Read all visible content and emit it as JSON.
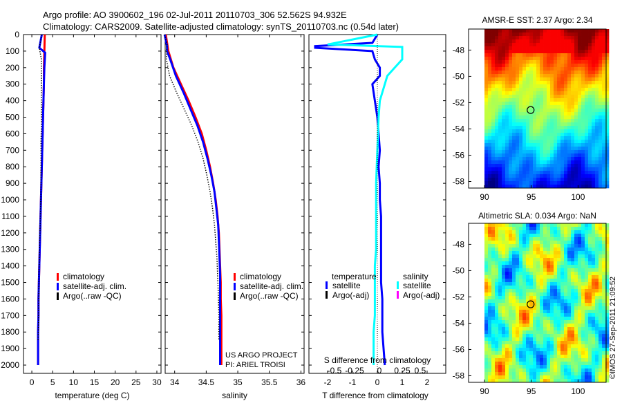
{
  "header": {
    "line1": "Argo profile: AO 3900602_196 02-Jul-2011 20110703_306 52.562S 94.932E",
    "line2": "Climatology: CARS2009. Satellite-adjusted climatology: synTS_20110703.nc (0.54d later)"
  },
  "credits": {
    "project": "US ARGO PROJECT",
    "pi": "PI: ARIEL TROISI"
  },
  "stamp": "©IMOS 27-Sep-2011 21:09:52",
  "colors": {
    "climatology": "#ff0000",
    "satellite": "#0000ff",
    "argo": "#000000",
    "satellite_s": "#00ffff",
    "argo_s": "#ff00ff"
  },
  "chart_data": [
    {
      "type": "line",
      "id": "temperature",
      "xlabel": "temperature (deg C)",
      "ylabel": "",
      "xlim": [
        -2,
        31
      ],
      "ylim": [
        2050,
        0
      ],
      "xticks": [
        0,
        5,
        10,
        15,
        20,
        25,
        30
      ],
      "yticks": [
        0,
        100,
        200,
        300,
        400,
        500,
        600,
        700,
        800,
        900,
        1000,
        1100,
        1200,
        1300,
        1400,
        1500,
        1600,
        1700,
        1800,
        1900,
        2000
      ],
      "legend": [
        "climatology",
        "satellite-adj. clim.",
        "Argo(..raw -QC)"
      ],
      "series": [
        {
          "name": "climatology",
          "color": "#ff0000",
          "x": [
            3.1,
            3.0,
            2.9,
            2.9,
            2.8,
            2.7,
            2.6,
            2.5,
            2.4,
            2.3,
            2.2,
            2.1,
            2.0,
            1.9,
            1.8,
            1.7,
            1.6,
            1.6,
            1.5,
            1.5,
            1.5
          ],
          "y": [
            0,
            100,
            200,
            300,
            400,
            500,
            600,
            700,
            800,
            900,
            1000,
            1100,
            1200,
            1300,
            1400,
            1500,
            1600,
            1700,
            1800,
            1900,
            2000
          ]
        },
        {
          "name": "satellite-adj. clim.",
          "color": "#0000ff",
          "x": [
            2.4,
            1.8,
            3.2,
            3.0,
            2.9,
            2.8,
            2.7,
            2.6,
            2.5,
            2.4,
            2.3,
            2.2,
            2.1,
            2.0,
            1.9,
            1.8,
            1.7,
            1.6,
            1.6,
            1.5,
            1.5,
            1.5
          ],
          "y": [
            0,
            80,
            110,
            200,
            300,
            400,
            500,
            600,
            700,
            800,
            900,
            1000,
            1100,
            1200,
            1300,
            1400,
            1500,
            1600,
            1700,
            1800,
            1900,
            2000
          ]
        },
        {
          "name": "Argo(..raw -QC)",
          "color": "#000000",
          "x": [
            2.4,
            1.8,
            2.3,
            2.3,
            2.3,
            2.3,
            2.3,
            2.2,
            2.2,
            2.2,
            2.2,
            2.1,
            2.0,
            1.9,
            1.8,
            1.7,
            1.7,
            1.6,
            1.6,
            1.5
          ],
          "y": [
            0,
            80,
            150,
            250,
            350,
            450,
            550,
            650,
            750,
            850,
            950,
            1050,
            1150,
            1250,
            1350,
            1450,
            1550,
            1650,
            1750,
            1850
          ]
        }
      ]
    },
    {
      "type": "line",
      "id": "salinity",
      "xlabel": "salinity",
      "xlim": [
        33.85,
        36.05
      ],
      "ylim": [
        2050,
        0
      ],
      "xticks": [
        34,
        34.5,
        35,
        35.5,
        36
      ],
      "legend": [
        "climatology",
        "satellite-adj. clim.",
        "Argo(..raw -QC)"
      ],
      "series": [
        {
          "name": "climatology",
          "color": "#ff0000",
          "x": [
            33.86,
            33.9,
            33.98,
            34.1,
            34.22,
            34.33,
            34.43,
            34.5,
            34.56,
            34.61,
            34.65,
            34.68,
            34.7,
            34.71,
            34.72,
            34.73,
            34.73,
            34.74,
            34.74,
            34.74,
            34.74
          ],
          "y": [
            0,
            100,
            200,
            300,
            400,
            500,
            600,
            700,
            800,
            900,
            1000,
            1100,
            1200,
            1300,
            1400,
            1500,
            1600,
            1700,
            1800,
            1900,
            2000
          ]
        },
        {
          "name": "satellite-adj. clim.",
          "color": "#0000ff",
          "x": [
            33.84,
            33.88,
            33.88,
            33.93,
            34.02,
            34.14,
            34.25,
            34.36,
            34.45,
            34.52,
            34.58,
            34.63,
            34.66,
            34.69,
            34.7,
            34.71,
            34.72,
            34.72,
            34.72,
            34.72,
            34.72,
            34.72
          ],
          "y": [
            0,
            70,
            100,
            150,
            250,
            350,
            450,
            550,
            650,
            750,
            850,
            950,
            1050,
            1150,
            1250,
            1350,
            1450,
            1550,
            1650,
            1750,
            1850,
            2000
          ]
        },
        {
          "name": "Argo(..raw -QC)",
          "color": "#000000",
          "x": [
            33.84,
            33.88,
            33.87,
            33.92,
            34.03,
            34.15,
            34.27,
            34.37,
            34.45,
            34.51,
            34.56,
            34.6,
            34.63,
            34.65,
            34.67,
            34.68,
            34.69,
            34.7,
            34.7
          ],
          "y": [
            0,
            60,
            150,
            250,
            350,
            450,
            550,
            650,
            750,
            850,
            950,
            1050,
            1150,
            1250,
            1350,
            1450,
            1550,
            1700,
            1850
          ]
        }
      ]
    },
    {
      "type": "line",
      "id": "difference",
      "xlabel": "T difference from climatology",
      "toplabel": "S difference from climatology",
      "xlim": [
        -2.75,
        2.75
      ],
      "ylim": [
        2050,
        0
      ],
      "xticks": [
        -2,
        -1,
        0,
        1,
        2
      ],
      "sticks": [
        "-0.5",
        "-0.25",
        "0",
        "0.25",
        "0.5"
      ],
      "legend": {
        "temperature": "temperature",
        "salinity": "salinity",
        "t_sat": "satellite",
        "t_argo": "Argo(-adj)",
        "s_sat": "satellite",
        "s_argo": "Argo(-adj)"
      },
      "series": [
        {
          "name": "T satellite",
          "color": "#0000ff",
          "x": [
            0,
            -0.2,
            -2.5,
            -2.5,
            -0.2,
            -0.1,
            0.1,
            0.1,
            -0.2,
            -0.1,
            0.0,
            0.05,
            0.1,
            0.05,
            0.1,
            0.1,
            0.15,
            0.15,
            0.15,
            0.2,
            0.2,
            0.25,
            0.3
          ],
          "y": [
            0,
            50,
            70,
            80,
            100,
            150,
            200,
            250,
            300,
            400,
            500,
            600,
            700,
            800,
            900,
            1000,
            1100,
            1300,
            1500,
            1600,
            1800,
            1900,
            2000
          ]
        },
        {
          "name": "S satellite",
          "color": "#00ffff",
          "x": [
            0,
            -2.0,
            1.0,
            1.0,
            0.7,
            0.4,
            0.1,
            0.05,
            0.0,
            -0.05,
            -0.05,
            -0.05,
            -0.05,
            -0.1,
            -0.1,
            -0.1,
            -0.1,
            -0.15,
            -0.15,
            -0.15
          ],
          "y": [
            0,
            60,
            75,
            150,
            200,
            250,
            400,
            500,
            700,
            900,
            1000,
            1200,
            1300,
            1400,
            1500,
            1600,
            1700,
            1800,
            1900,
            2000
          ]
        }
      ]
    },
    {
      "type": "heatmap",
      "id": "sst",
      "title": "AMSR-E SST: 2.37 Argo: 2.34",
      "xlim": [
        88.3,
        103
      ],
      "ylim": [
        -58.5,
        -46.4
      ],
      "xticks": [
        90,
        95,
        100
      ],
      "yticks": [
        -48,
        -50,
        -52,
        -54,
        -56,
        -58
      ],
      "marker": {
        "x": 94.932,
        "y": -52.562
      }
    },
    {
      "type": "heatmap",
      "id": "sla",
      "title": "Altimetric SLA: 0.034 Argo: NaN",
      "xlim": [
        88.3,
        103
      ],
      "ylim": [
        -58.5,
        -46.4
      ],
      "xticks": [
        90,
        95,
        100
      ],
      "yticks": [
        -48,
        -50,
        -52,
        -54,
        -56,
        -58
      ],
      "marker": {
        "x": 94.932,
        "y": -52.562
      }
    }
  ]
}
